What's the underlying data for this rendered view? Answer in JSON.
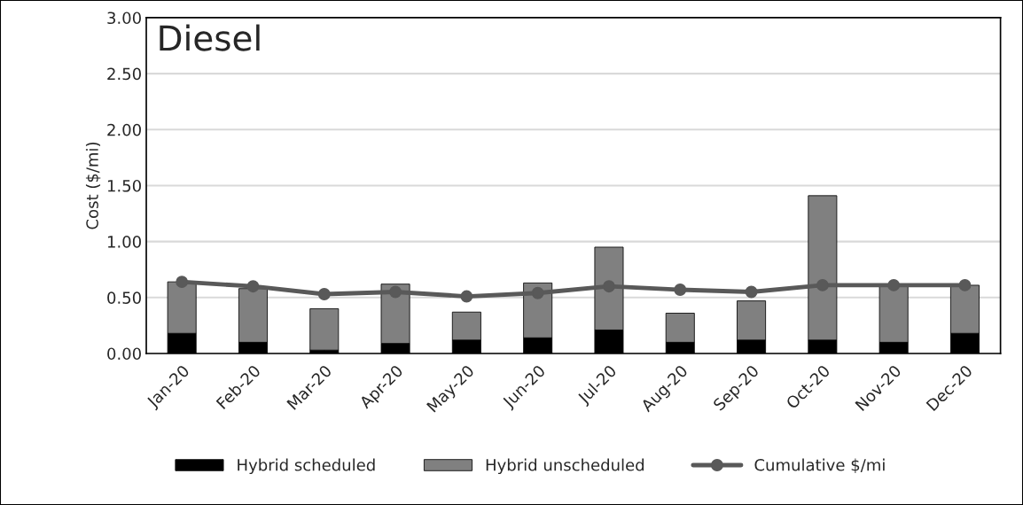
{
  "chart_data": {
    "type": "bar",
    "title": "Diesel",
    "ylabel": "Cost ($/mi)",
    "categories": [
      "Jan-20",
      "Feb-20",
      "Mar-20",
      "Apr-20",
      "May-20",
      "Jun-20",
      "Jul-20",
      "Aug-20",
      "Sep-20",
      "Oct-20",
      "Nov-20",
      "Dec-20"
    ],
    "stacked": true,
    "series": [
      {
        "name": "Hybrid scheduled",
        "color": "#000000",
        "values": [
          0.18,
          0.1,
          0.03,
          0.09,
          0.12,
          0.14,
          0.21,
          0.1,
          0.12,
          0.12,
          0.1,
          0.18
        ]
      },
      {
        "name": "Hybrid unscheduled",
        "color": "#808080",
        "values": [
          0.46,
          0.48,
          0.37,
          0.53,
          0.25,
          0.49,
          0.74,
          0.26,
          0.35,
          1.29,
          0.51,
          0.43
        ]
      },
      {
        "name": "Cumulative $/mi",
        "type": "line",
        "color": "#595959",
        "marker": "circle",
        "values": [
          0.64,
          0.6,
          0.53,
          0.55,
          0.51,
          0.54,
          0.6,
          0.57,
          0.55,
          0.61,
          0.61,
          0.61
        ]
      }
    ],
    "ylim": [
      0,
      3
    ],
    "yticks": [
      {
        "value": 0,
        "label": "0.00"
      },
      {
        "value": 0.5,
        "label": "0.50"
      },
      {
        "value": 1,
        "label": "1.00"
      },
      {
        "value": 1.5,
        "label": "1.50"
      },
      {
        "value": 2,
        "label": "2.00"
      },
      {
        "value": 2.5,
        "label": "2.50"
      },
      {
        "value": 3,
        "label": "3.00"
      }
    ],
    "grid": "y",
    "legend": "bottom"
  }
}
